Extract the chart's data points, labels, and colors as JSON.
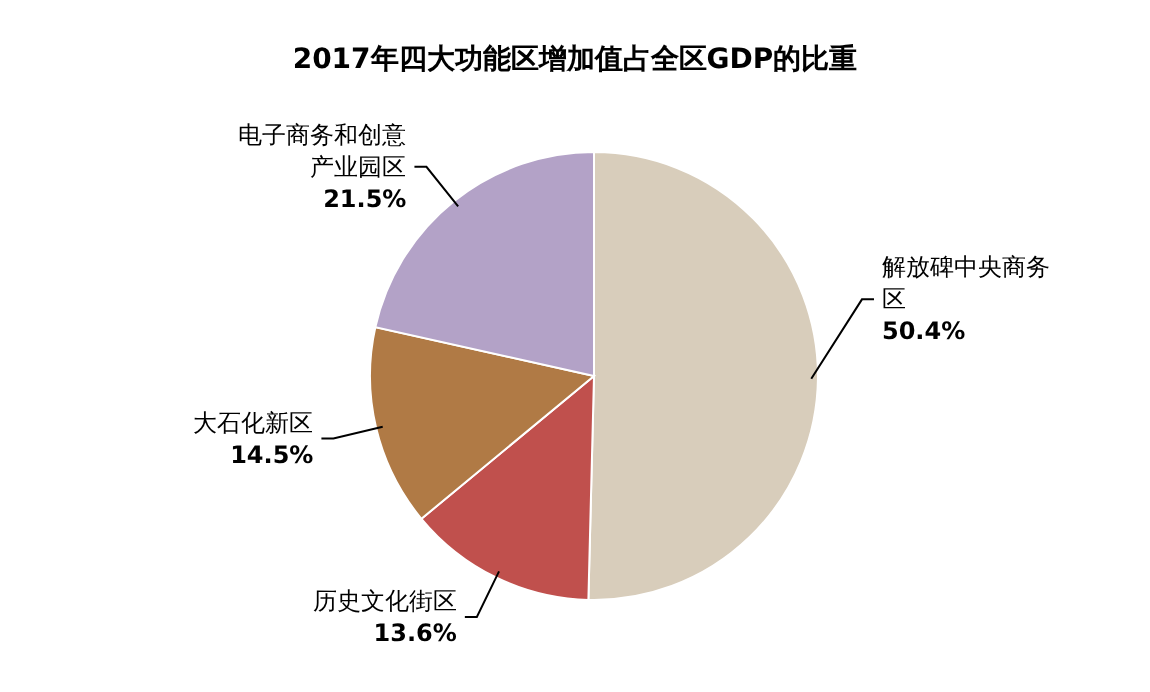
{
  "chart_data": {
    "type": "pie",
    "title": "2017年四大功能区增加值占全区GDP的比重",
    "categories": [
      "解放碑中央商务区",
      "历史文化街区",
      "大石化新区",
      "电子商务和创意产业园区"
    ],
    "values": [
      50.4,
      13.6,
      14.5,
      21.5
    ],
    "value_labels": [
      "50.4%",
      "13.6%",
      "14.5%",
      "21.5%"
    ],
    "colors": [
      "#d8cdbb",
      "#c0504d",
      "#b07a45",
      "#b3a2c7"
    ]
  }
}
